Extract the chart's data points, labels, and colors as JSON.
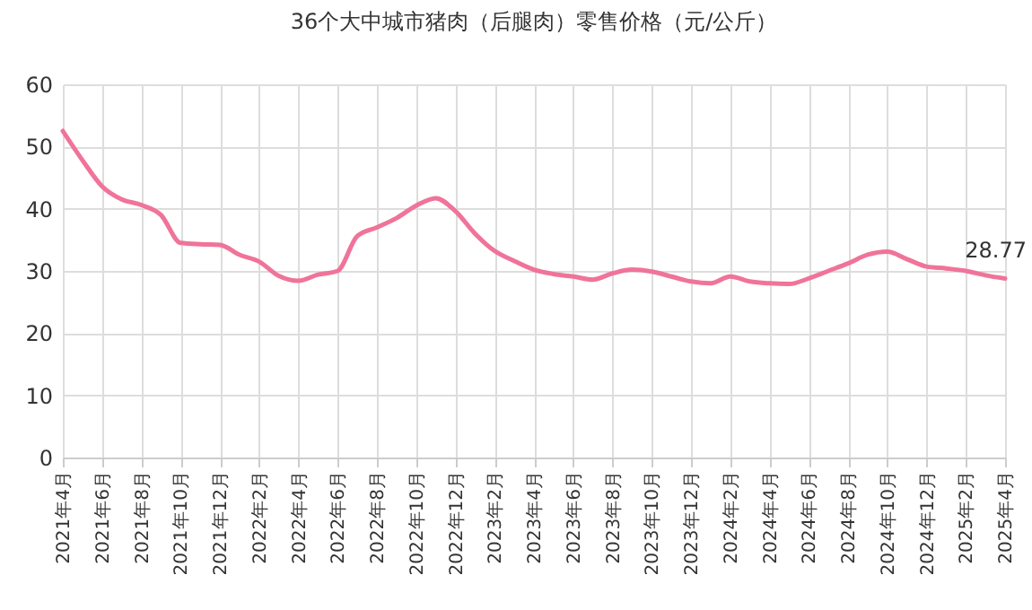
{
  "chart_data": {
    "type": "line",
    "title": "36个大中城市猪肉（后腿肉）零售价格（元/公斤）",
    "categories": [
      "2021年4月",
      null,
      "2021年6月",
      null,
      "2021年8月",
      null,
      "2021年10月",
      null,
      "2021年12月",
      null,
      "2022年2月",
      null,
      "2022年4月",
      null,
      "2022年6月",
      null,
      "2022年8月",
      null,
      "2022年10月",
      null,
      "2022年12月",
      null,
      "2023年2月",
      null,
      "2023年4月",
      null,
      "2023年6月",
      null,
      "2023年8月",
      null,
      "2023年10月",
      null,
      "2023年12月",
      null,
      "2024年2月",
      null,
      "2024年4月",
      null,
      "2024年6月",
      null,
      "2024年8月",
      null,
      "2024年10月",
      null,
      "2024年12月",
      null,
      "2025年2月",
      null,
      "2025年4月"
    ],
    "series": [
      {
        "color": "#f0739a",
        "values": [
          52.5,
          47.8,
          43.6,
          41.5,
          40.6,
          39.0,
          34.5,
          34.3,
          34.2,
          32.6,
          31.5,
          29.2,
          28.4,
          29.4,
          30.0,
          35.6,
          37.0,
          38.5,
          40.5,
          41.7,
          39.6,
          36.0,
          33.2,
          31.6,
          30.2,
          29.5,
          29.1,
          28.6,
          29.6,
          30.2,
          29.9,
          29.1,
          28.3,
          28.0,
          29.1,
          28.3,
          28.0,
          27.9,
          28.8,
          30.0,
          31.2,
          32.6,
          33.1,
          31.9,
          30.7,
          30.4,
          30.0,
          29.3,
          28.77
        ]
      }
    ],
    "ylim": [
      0,
      60
    ],
    "yticks": [
      0,
      10,
      20,
      30,
      40,
      50,
      60
    ],
    "grid": true,
    "marker": "none",
    "line_style": "solid",
    "annotations": [
      {
        "text": "28.77",
        "x": "2025年4月",
        "y": 28.77
      }
    ]
  }
}
